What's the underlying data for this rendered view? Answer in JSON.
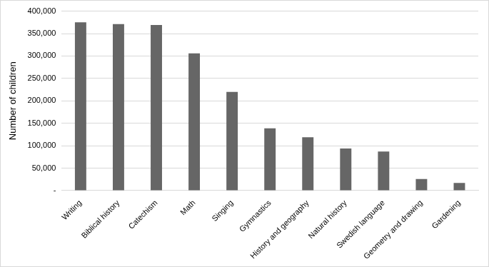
{
  "chart_data": {
    "type": "bar",
    "y_label": "Number of children",
    "categories": [
      "Writing",
      "Biblical history",
      "Catechism",
      "Math",
      "Singing",
      "Gymnastics",
      "History and geography",
      "Natural history",
      "Swedish language",
      "Geometry and drawing",
      "Gardening"
    ],
    "values": [
      375000,
      371000,
      369000,
      306000,
      220000,
      139000,
      119000,
      94000,
      87000,
      26000,
      17000
    ],
    "color": "#666666",
    "ylim": [
      0,
      400000
    ],
    "yticks": [
      {
        "value": 0,
        "label": "-"
      },
      {
        "value": 50000,
        "label": "50,000"
      },
      {
        "value": 100000,
        "label": "100,000"
      },
      {
        "value": 150000,
        "label": "150,000"
      },
      {
        "value": 200000,
        "label": "200,000"
      },
      {
        "value": 250000,
        "label": "250,000"
      },
      {
        "value": 300000,
        "label": "300,000"
      },
      {
        "value": 350000,
        "label": "350,000"
      },
      {
        "value": 400000,
        "label": "400,000"
      }
    ],
    "grid": true
  }
}
